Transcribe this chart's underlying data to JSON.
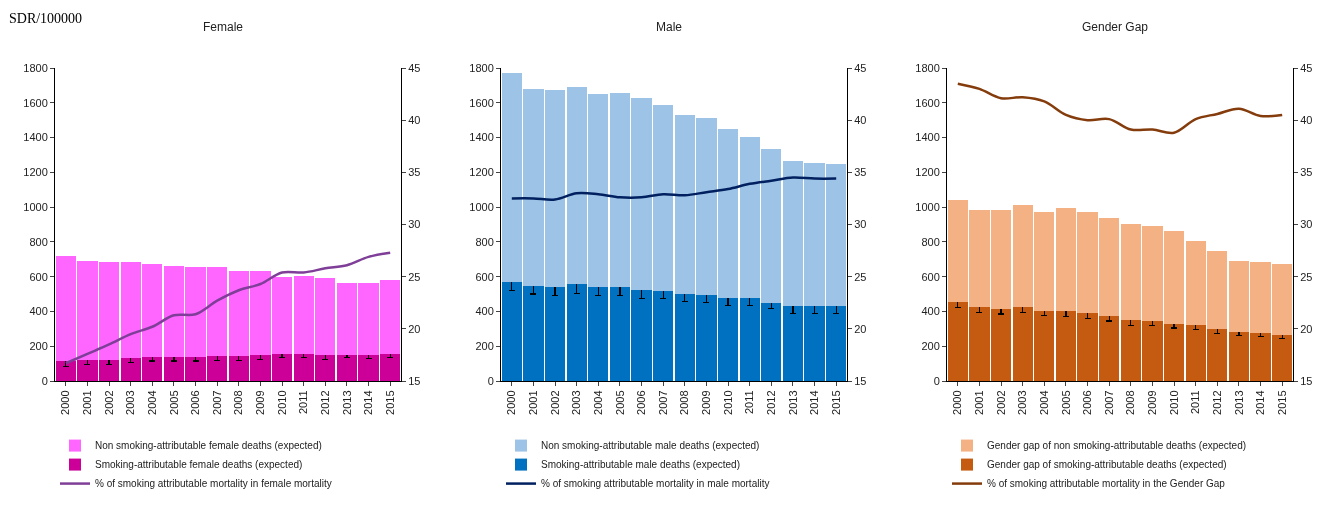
{
  "chart_data": [
    {
      "type": "bar",
      "title": "Female",
      "annotations": [
        "SDR/100000"
      ],
      "stacked": true,
      "legend": "bottom",
      "grid": false,
      "marker": "none",
      "line_style": "solid",
      "categories": [
        "2000",
        "2001",
        "2002",
        "2003",
        "2004",
        "2005",
        "2006",
        "2007",
        "2008",
        "2009",
        "2010",
        "2011",
        "2012",
        "2013",
        "2014",
        "2015"
      ],
      "ylim": [
        0,
        1800
      ],
      "yticks": [
        0,
        200,
        400,
        600,
        800,
        1000,
        1200,
        1400,
        1600,
        1800
      ],
      "y2lim": [
        15,
        45
      ],
      "y2ticks": [
        15,
        20,
        25,
        30,
        35,
        40,
        45
      ],
      "series": [
        {
          "name": "Smoking-attributable female deaths (expected)",
          "color": "#cc0099",
          "values": [
            115,
            120,
            120,
            130,
            140,
            140,
            140,
            145,
            145,
            150,
            155,
            155,
            150,
            150,
            150,
            155
          ],
          "errors": [
            30,
            25,
            25,
            25,
            25,
            25,
            25,
            25,
            25,
            25,
            20,
            20,
            25,
            15,
            20,
            20
          ]
        },
        {
          "name": "Non smoking-attributable female deaths (expected)",
          "color": "#ff66ff",
          "values": [
            605,
            570,
            565,
            555,
            535,
            520,
            515,
            510,
            485,
            480,
            445,
            450,
            440,
            415,
            415,
            425
          ]
        },
        {
          "name": "% of smoking attributable mortality in female mortality",
          "type": "line",
          "axis": "y2",
          "color": "#7f3f98",
          "values": [
            16.7,
            17.6,
            18.5,
            19.5,
            20.2,
            21.3,
            21.4,
            22.7,
            23.7,
            24.3,
            25.4,
            25.4,
            25.8,
            26.1,
            26.9,
            27.3
          ]
        }
      ]
    },
    {
      "type": "bar",
      "title": "Male",
      "stacked": true,
      "legend": "bottom",
      "grid": false,
      "marker": "none",
      "line_style": "solid",
      "categories": [
        "2000",
        "2001",
        "2002",
        "2003",
        "2004",
        "2005",
        "2006",
        "2007",
        "2008",
        "2009",
        "2010",
        "2011",
        "2012",
        "2013",
        "2014",
        "2015"
      ],
      "ylim": [
        0,
        1800
      ],
      "yticks": [
        0,
        200,
        400,
        600,
        800,
        1000,
        1200,
        1400,
        1600,
        1800
      ],
      "y2lim": [
        15,
        45
      ],
      "y2ticks": [
        15,
        20,
        25,
        30,
        35,
        40,
        45
      ],
      "series": [
        {
          "name": "Smoking-attributable male deaths (expected)",
          "color": "#0070c0",
          "values": [
            570,
            545,
            540,
            555,
            540,
            540,
            525,
            520,
            500,
            495,
            480,
            475,
            450,
            430,
            430,
            430
          ],
          "errors": [
            50,
            45,
            50,
            50,
            50,
            50,
            50,
            45,
            45,
            45,
            45,
            40,
            35,
            40,
            40,
            40
          ]
        },
        {
          "name": "Non smoking-attributable male deaths (expected)",
          "color": "#9dc3e6",
          "values": [
            1200,
            1135,
            1135,
            1135,
            1110,
            1115,
            1100,
            1065,
            1030,
            1020,
            970,
            930,
            885,
            835,
            825,
            820
          ]
        },
        {
          "name": "% of smoking attributable mortality in male mortality",
          "type": "line",
          "axis": "y2",
          "color": "#002060",
          "values": [
            32.5,
            32.5,
            32.4,
            33.0,
            32.9,
            32.6,
            32.6,
            32.9,
            32.8,
            33.1,
            33.4,
            33.9,
            34.2,
            34.5,
            34.4,
            34.4
          ]
        }
      ]
    },
    {
      "type": "bar",
      "title": "Gender Gap",
      "stacked": true,
      "legend": "bottom",
      "grid": false,
      "marker": "none",
      "line_style": "solid",
      "categories": [
        "2000",
        "2001",
        "2002",
        "2003",
        "2004",
        "2005",
        "2006",
        "2007",
        "2008",
        "2009",
        "2010",
        "2011",
        "2012",
        "2013",
        "2014",
        "2015"
      ],
      "ylim": [
        0,
        1800
      ],
      "yticks": [
        0,
        200,
        400,
        600,
        800,
        1000,
        1200,
        1400,
        1600,
        1800
      ],
      "y2lim": [
        15,
        45
      ],
      "y2ticks": [
        15,
        20,
        25,
        30,
        35,
        40,
        45
      ],
      "series": [
        {
          "name": "Gender gap of smoking-attributable deaths (expected)",
          "color": "#c55a11",
          "values": [
            455,
            425,
            415,
            425,
            405,
            400,
            390,
            375,
            350,
            345,
            330,
            320,
            300,
            280,
            275,
            265
          ],
          "errors": [
            30,
            30,
            30,
            30,
            30,
            30,
            30,
            30,
            30,
            25,
            25,
            25,
            25,
            20,
            20,
            20
          ]
        },
        {
          "name": "Gender gap of non smoking-attributable deaths (expected)",
          "color": "#f4b183",
          "values": [
            585,
            560,
            570,
            585,
            565,
            595,
            580,
            565,
            555,
            545,
            530,
            485,
            450,
            410,
            410,
            405
          ]
        },
        {
          "name": "% of smoking attributable mortality in the Gender Gap",
          "type": "line",
          "axis": "y2",
          "color": "#843c0c",
          "values": [
            43.5,
            43.0,
            42.1,
            42.2,
            41.8,
            40.5,
            40.0,
            40.1,
            39.1,
            39.1,
            38.8,
            40.1,
            40.6,
            41.1,
            40.4,
            40.5
          ]
        }
      ]
    }
  ]
}
